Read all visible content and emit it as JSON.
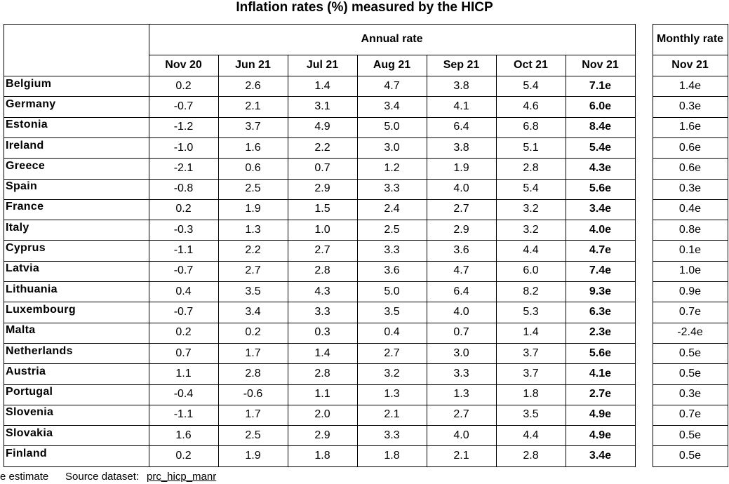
{
  "title": "Inflation rates (%) measured by the HICP",
  "header": {
    "annual_rate": "Annual rate",
    "monthly_rate": "Monthly rate",
    "columns": [
      "Nov 20",
      "Jun 21",
      "Jul 21",
      "Aug 21",
      "Sep 21",
      "Oct 21",
      "Nov 21"
    ],
    "monthly_column": "Nov 21"
  },
  "rows": [
    {
      "country": "Belgium",
      "values": [
        "0.2",
        "2.6",
        "1.4",
        "4.7",
        "3.8",
        "5.4",
        "7.1e"
      ],
      "monthly": "1.4e"
    },
    {
      "country": "Germany",
      "values": [
        "-0.7",
        "2.1",
        "3.1",
        "3.4",
        "4.1",
        "4.6",
        "6.0e"
      ],
      "monthly": "0.3e"
    },
    {
      "country": "Estonia",
      "values": [
        "-1.2",
        "3.7",
        "4.9",
        "5.0",
        "6.4",
        "6.8",
        "8.4e"
      ],
      "monthly": "1.6e"
    },
    {
      "country": "Ireland",
      "values": [
        "-1.0",
        "1.6",
        "2.2",
        "3.0",
        "3.8",
        "5.1",
        "5.4e"
      ],
      "monthly": "0.6e"
    },
    {
      "country": "Greece",
      "values": [
        "-2.1",
        "0.6",
        "0.7",
        "1.2",
        "1.9",
        "2.8",
        "4.3e"
      ],
      "monthly": "0.6e"
    },
    {
      "country": "Spain",
      "values": [
        "-0.8",
        "2.5",
        "2.9",
        "3.3",
        "4.0",
        "5.4",
        "5.6e"
      ],
      "monthly": "0.3e"
    },
    {
      "country": "France",
      "values": [
        "0.2",
        "1.9",
        "1.5",
        "2.4",
        "2.7",
        "3.2",
        "3.4e"
      ],
      "monthly": "0.4e"
    },
    {
      "country": "Italy",
      "values": [
        "-0.3",
        "1.3",
        "1.0",
        "2.5",
        "2.9",
        "3.2",
        "4.0e"
      ],
      "monthly": "0.8e"
    },
    {
      "country": "Cyprus",
      "values": [
        "-1.1",
        "2.2",
        "2.7",
        "3.3",
        "3.6",
        "4.4",
        "4.7e"
      ],
      "monthly": "0.1e"
    },
    {
      "country": "Latvia",
      "values": [
        "-0.7",
        "2.7",
        "2.8",
        "3.6",
        "4.7",
        "6.0",
        "7.4e"
      ],
      "monthly": "1.0e"
    },
    {
      "country": "Lithuania",
      "values": [
        "0.4",
        "3.5",
        "4.3",
        "5.0",
        "6.4",
        "8.2",
        "9.3e"
      ],
      "monthly": "0.9e"
    },
    {
      "country": "Luxembourg",
      "values": [
        "-0.7",
        "3.4",
        "3.3",
        "3.5",
        "4.0",
        "5.3",
        "6.3e"
      ],
      "monthly": "0.7e"
    },
    {
      "country": "Malta",
      "values": [
        "0.2",
        "0.2",
        "0.3",
        "0.4",
        "0.7",
        "1.4",
        "2.3e"
      ],
      "monthly": "-2.4e"
    },
    {
      "country": "Netherlands",
      "values": [
        "0.7",
        "1.7",
        "1.4",
        "2.7",
        "3.0",
        "3.7",
        "5.6e"
      ],
      "monthly": "0.5e"
    },
    {
      "country": "Austria",
      "values": [
        "1.1",
        "2.8",
        "2.8",
        "3.2",
        "3.3",
        "3.7",
        "4.1e"
      ],
      "monthly": "0.5e"
    },
    {
      "country": "Portugal",
      "values": [
        "-0.4",
        "-0.6",
        "1.1",
        "1.3",
        "1.3",
        "1.8",
        "2.7e"
      ],
      "monthly": "0.3e"
    },
    {
      "country": "Slovenia",
      "values": [
        "-1.1",
        "1.7",
        "2.0",
        "2.1",
        "2.7",
        "3.5",
        "4.9e"
      ],
      "monthly": "0.7e"
    },
    {
      "country": "Slovakia",
      "values": [
        "1.6",
        "2.5",
        "2.9",
        "3.3",
        "4.0",
        "4.4",
        "4.9e"
      ],
      "monthly": "0.5e"
    },
    {
      "country": "Finland",
      "values": [
        "0.2",
        "1.9",
        "1.8",
        "1.8",
        "2.1",
        "2.8",
        "3.4e"
      ],
      "monthly": "0.5e"
    }
  ],
  "footer": {
    "note": "e estimate",
    "source_label": "Source dataset:",
    "source_link": "prc_hicp_manr"
  }
}
